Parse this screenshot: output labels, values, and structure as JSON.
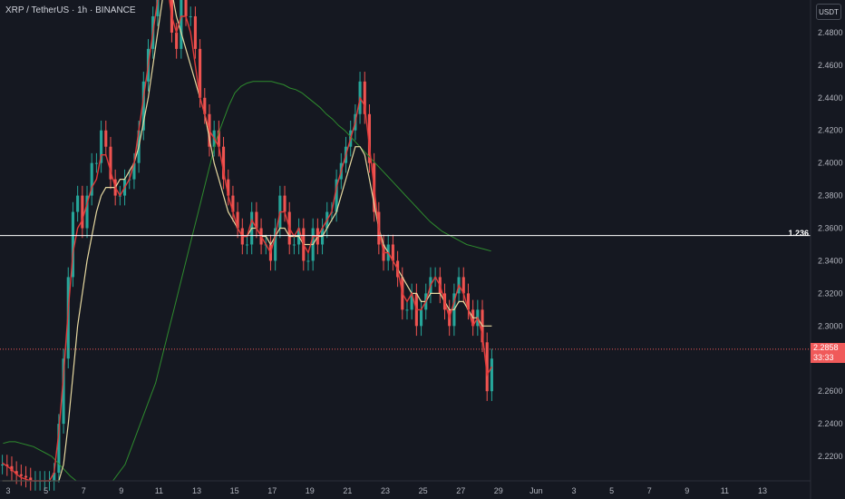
{
  "header": {
    "symbol_line": "XRP / TetherUS · 1h · BINANCE",
    "unit": "USDT"
  },
  "colors": {
    "background": "#151821",
    "up": "#26a69a",
    "down": "#ef5350",
    "ma_fast": "#e03a3a",
    "ma_mid": "#e6d8a0",
    "ma_slow": "#2e8b2e",
    "fib": "#ffffff",
    "price_line": "#f05a5a"
  },
  "chart_data": {
    "type": "candlestick",
    "y_ticks": [
      "2.4800",
      "2.4600",
      "2.4400",
      "2.4200",
      "2.4000",
      "2.3800",
      "2.3600",
      "2.3400",
      "2.3200",
      "2.3000",
      "2.2800",
      "2.2600",
      "2.2400",
      "2.2200"
    ],
    "ylim": [
      2.205,
      2.5
    ],
    "x_ticks": [
      "3",
      "5",
      "7",
      "9",
      "11",
      "13",
      "15",
      "17",
      "19",
      "21",
      "23",
      "25",
      "27",
      "29",
      "Jun",
      "3",
      "5",
      "7",
      "9",
      "11",
      "13"
    ],
    "fib_level": {
      "label": "1.236",
      "price": 2.3555
    },
    "current_price": {
      "price": "2.2858",
      "countdown": "33:33",
      "value": 2.2858
    },
    "series_close": [
      2.215,
      2.214,
      2.211,
      2.209,
      2.208,
      2.207,
      2.205,
      2.205,
      2.205,
      2.205,
      2.205,
      2.21,
      2.24,
      2.28,
      2.33,
      2.37,
      2.38,
      2.36,
      2.38,
      2.4,
      2.4,
      2.42,
      2.41,
      2.39,
      2.38,
      2.38,
      2.39,
      2.39,
      2.4,
      2.42,
      2.45,
      2.47,
      2.49,
      2.51,
      2.52,
      2.51,
      2.48,
      2.47,
      2.5,
      2.49,
      2.49,
      2.47,
      2.44,
      2.43,
      2.41,
      2.42,
      2.41,
      2.39,
      2.38,
      2.37,
      2.36,
      2.35,
      2.35,
      2.37,
      2.36,
      2.35,
      2.35,
      2.34,
      2.36,
      2.38,
      2.37,
      2.35,
      2.35,
      2.36,
      2.34,
      2.34,
      2.36,
      2.35,
      2.36,
      2.37,
      2.37,
      2.39,
      2.4,
      2.41,
      2.42,
      2.43,
      2.45,
      2.43,
      2.4,
      2.37,
      2.35,
      2.34,
      2.35,
      2.34,
      2.33,
      2.31,
      2.31,
      2.32,
      2.3,
      2.31,
      2.32,
      2.33,
      2.33,
      2.32,
      2.31,
      2.3,
      2.32,
      2.33,
      2.32,
      2.31,
      2.3,
      2.31,
      2.29,
      2.26,
      2.28
    ],
    "series_ma_fast": [
      2.216,
      2.214,
      2.212,
      2.209,
      2.207,
      2.206,
      2.205,
      2.205,
      2.205,
      2.205,
      2.205,
      2.21,
      2.235,
      2.27,
      2.31,
      2.345,
      2.36,
      2.365,
      2.375,
      2.385,
      2.39,
      2.405,
      2.405,
      2.395,
      2.385,
      2.38,
      2.385,
      2.39,
      2.4,
      2.42,
      2.44,
      2.46,
      2.48,
      2.5,
      2.51,
      2.51,
      2.49,
      2.48,
      2.49,
      2.49,
      2.48,
      2.46,
      2.44,
      2.43,
      2.42,
      2.415,
      2.41,
      2.395,
      2.38,
      2.37,
      2.36,
      2.355,
      2.355,
      2.365,
      2.36,
      2.355,
      2.35,
      2.345,
      2.355,
      2.37,
      2.37,
      2.36,
      2.355,
      2.36,
      2.35,
      2.345,
      2.355,
      2.355,
      2.36,
      2.365,
      2.37,
      2.385,
      2.395,
      2.405,
      2.415,
      2.425,
      2.44,
      2.435,
      2.41,
      2.385,
      2.36,
      2.345,
      2.345,
      2.34,
      2.335,
      2.32,
      2.315,
      2.32,
      2.31,
      2.31,
      2.315,
      2.325,
      2.33,
      2.325,
      2.315,
      2.305,
      2.315,
      2.325,
      2.32,
      2.31,
      2.3,
      2.305,
      2.295,
      2.27,
      2.275
    ],
    "series_ma_mid": [
      2.205,
      2.205,
      2.205,
      2.205,
      2.205,
      2.205,
      2.205,
      2.205,
      2.205,
      2.205,
      2.205,
      2.205,
      2.205,
      2.215,
      2.24,
      2.27,
      2.3,
      2.32,
      2.34,
      2.355,
      2.37,
      2.38,
      2.385,
      2.385,
      2.385,
      2.39,
      2.39,
      2.395,
      2.4,
      2.41,
      2.425,
      2.44,
      2.46,
      2.48,
      2.5,
      2.51,
      2.505,
      2.49,
      2.48,
      2.47,
      2.46,
      2.45,
      2.44,
      2.43,
      2.415,
      2.4,
      2.39,
      2.38,
      2.37,
      2.365,
      2.36,
      2.355,
      2.355,
      2.36,
      2.36,
      2.355,
      2.355,
      2.35,
      2.355,
      2.36,
      2.36,
      2.355,
      2.355,
      2.355,
      2.35,
      2.35,
      2.35,
      2.355,
      2.355,
      2.36,
      2.365,
      2.37,
      2.38,
      2.39,
      2.4,
      2.41,
      2.41,
      2.405,
      2.39,
      2.375,
      2.36,
      2.35,
      2.345,
      2.34,
      2.335,
      2.33,
      2.325,
      2.32,
      2.32,
      2.315,
      2.315,
      2.32,
      2.32,
      2.32,
      2.315,
      2.31,
      2.31,
      2.315,
      2.315,
      2.31,
      2.305,
      2.305,
      2.3,
      2.3,
      2.3
    ],
    "series_ma_slow": [
      2.228,
      2.229,
      2.229,
      2.228,
      2.227,
      2.226,
      2.224,
      2.222,
      2.22,
      2.216,
      2.212,
      2.208,
      2.205,
      2.205,
      2.205,
      2.205,
      2.205,
      2.205,
      2.205,
      2.21,
      2.215,
      2.225,
      2.235,
      2.245,
      2.255,
      2.265,
      2.28,
      2.295,
      2.31,
      2.325,
      2.34,
      2.355,
      2.37,
      2.385,
      2.4,
      2.415,
      2.425,
      2.435,
      2.443,
      2.447,
      2.449,
      2.45,
      2.45,
      2.45,
      2.45,
      2.449,
      2.448,
      2.446,
      2.445,
      2.443,
      2.44,
      2.437,
      2.434,
      2.43,
      2.427,
      2.423,
      2.42,
      2.416,
      2.412,
      2.408,
      2.404,
      2.4,
      2.396,
      2.392,
      2.388,
      2.384,
      2.38,
      2.376,
      2.372,
      2.368,
      2.364,
      2.361,
      2.358,
      2.356,
      2.354,
      2.352,
      2.35,
      2.349,
      2.348,
      2.347,
      2.346
    ]
  }
}
